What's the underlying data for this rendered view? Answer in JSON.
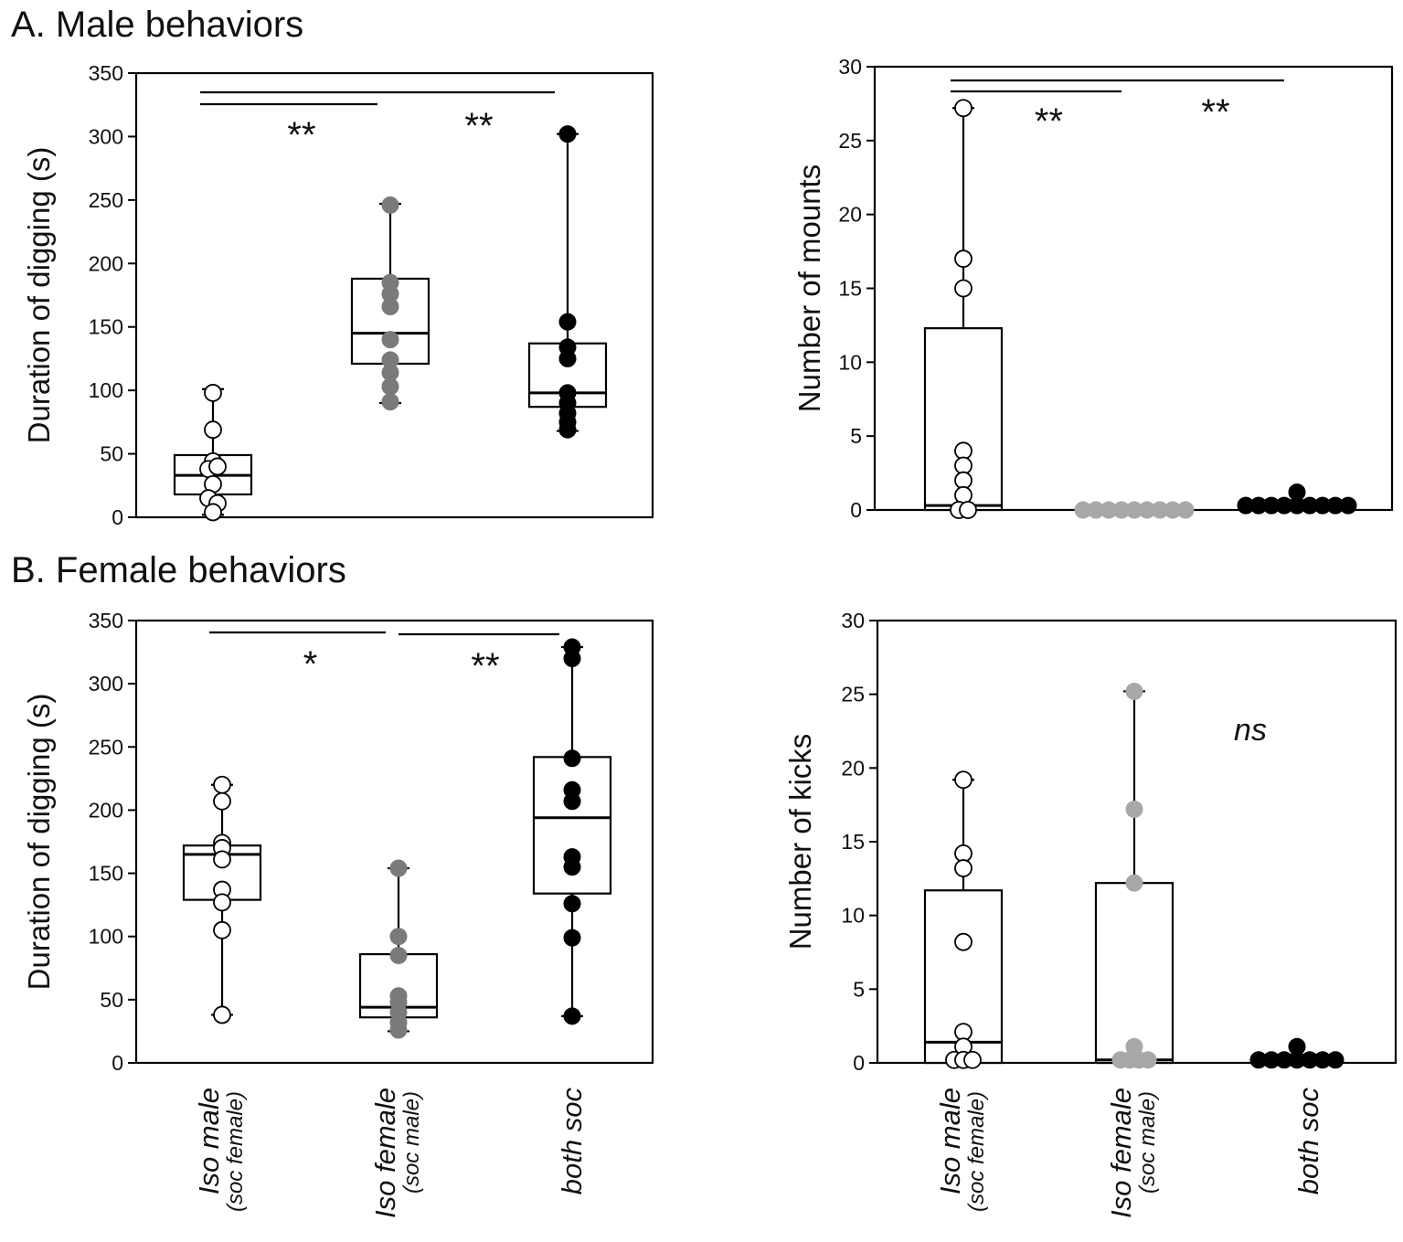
{
  "sections": {
    "a": "A. Male behaviors",
    "b": "B. Female behaviors"
  },
  "categories": [
    {
      "main": "Iso male",
      "sub": "(soc female)"
    },
    {
      "main": "Iso female",
      "sub": "(soc male)"
    },
    {
      "main": "both soc",
      "sub": ""
    }
  ],
  "colors": {
    "iso_male": "#ffffff",
    "iso_female": "#7a7a7a",
    "iso_female_light": "#a8a8a8",
    "both_soc": "#000000"
  },
  "chart_data": [
    {
      "id": "a-digging",
      "type": "box",
      "title": "",
      "xlabel": "",
      "ylabel": "Duration of digging (s)",
      "ylim": [
        0,
        350
      ],
      "yticks": [
        0,
        50,
        100,
        150,
        200,
        250,
        300,
        350
      ],
      "categories": [
        "Iso male (soc female)",
        "Iso female (soc male)",
        "both soc"
      ],
      "series": [
        {
          "name": "Iso male (soc female)",
          "color": "#ffffff",
          "box": {
            "q1": 18,
            "median": 33,
            "q3": 49,
            "whisker_low": 2,
            "whisker_high": 101
          },
          "points": [
            98,
            69,
            44,
            38,
            40,
            26,
            15,
            11,
            4
          ]
        },
        {
          "name": "Iso female (soc male)",
          "color": "#7a7a7a",
          "box": {
            "q1": 121,
            "median": 145,
            "q3": 188,
            "whisker_low": 90,
            "whisker_high": 247
          },
          "points": [
            246,
            185,
            176,
            166,
            140,
            124,
            114,
            103,
            91
          ]
        },
        {
          "name": "both soc",
          "color": "#000000",
          "box": {
            "q1": 87,
            "median": 98,
            "q3": 137,
            "whisker_low": 68,
            "whisker_high": 302
          },
          "points": [
            302,
            154,
            134,
            125,
            98,
            90,
            82,
            75,
            69
          ]
        }
      ],
      "significance": [
        {
          "from": 0,
          "to": 1,
          "label": "**"
        },
        {
          "from": 0,
          "to": 2,
          "label": "**"
        }
      ]
    },
    {
      "id": "a-mounts",
      "type": "box",
      "title": "",
      "xlabel": "",
      "ylabel": "Number of mounts",
      "ylim": [
        0,
        30
      ],
      "yticks": [
        0,
        5,
        10,
        15,
        20,
        25,
        30
      ],
      "categories": [
        "Iso male (soc female)",
        "Iso female (soc male)",
        "both soc"
      ],
      "series": [
        {
          "name": "Iso male (soc female)",
          "color": "#ffffff",
          "box": {
            "q1": 0,
            "median": 0.3,
            "q3": 12.3,
            "whisker_low": 0,
            "whisker_high": 27.2
          },
          "points": [
            27.2,
            17,
            15,
            4,
            3,
            2,
            1,
            0,
            0
          ]
        },
        {
          "name": "Iso female (soc male)",
          "color": "#a8a8a8",
          "box": null,
          "points": [
            0,
            0,
            0,
            0,
            0,
            0,
            0,
            0,
            0
          ]
        },
        {
          "name": "both soc",
          "color": "#000000",
          "box": null,
          "points": [
            1.2,
            0.3,
            0.3,
            0.3,
            0.3,
            0.3,
            0.3,
            0.3,
            0.3,
            0.3
          ]
        }
      ],
      "significance": [
        {
          "from": 0,
          "to": 1,
          "label": "**"
        },
        {
          "from": 0,
          "to": 2,
          "label": "**"
        }
      ]
    },
    {
      "id": "b-digging",
      "type": "box",
      "title": "",
      "xlabel": "",
      "ylabel": "Duration of digging (s)",
      "ylim": [
        0,
        350
      ],
      "yticks": [
        0,
        50,
        100,
        150,
        200,
        250,
        300,
        350
      ],
      "categories": [
        "Iso male (soc female)",
        "Iso female (soc male)",
        "both soc"
      ],
      "series": [
        {
          "name": "Iso male (soc female)",
          "color": "#ffffff",
          "box": {
            "q1": 129,
            "median": 165,
            "q3": 172,
            "whisker_low": 38,
            "whisker_high": 220
          },
          "points": [
            220,
            207,
            174,
            170,
            161,
            137,
            127,
            105,
            38
          ]
        },
        {
          "name": "Iso female (soc male)",
          "color": "#7a7a7a",
          "box": {
            "q1": 36,
            "median": 44,
            "q3": 86,
            "whisker_low": 25,
            "whisker_high": 154
          },
          "points": [
            154,
            100,
            85,
            53,
            48,
            40,
            32,
            26
          ]
        },
        {
          "name": "both soc",
          "color": "#000000",
          "box": {
            "q1": 134,
            "median": 194,
            "q3": 242,
            "whisker_low": 37,
            "whisker_high": 329
          },
          "points": [
            329,
            320,
            241,
            216,
            207,
            163,
            155,
            126,
            99,
            37
          ]
        }
      ],
      "significance": [
        {
          "from": 0,
          "to": 1,
          "label": "*"
        },
        {
          "from": 1,
          "to": 2,
          "label": "**"
        }
      ]
    },
    {
      "id": "b-kicks",
      "type": "box",
      "title": "",
      "xlabel": "",
      "ylabel": "Number of kicks",
      "ylim": [
        0,
        30
      ],
      "yticks": [
        0,
        5,
        10,
        15,
        20,
        25,
        30
      ],
      "categories": [
        "Iso male (soc female)",
        "Iso female (soc male)",
        "both soc"
      ],
      "series": [
        {
          "name": "Iso male (soc female)",
          "color": "#ffffff",
          "box": {
            "q1": 0,
            "median": 1.4,
            "q3": 11.7,
            "whisker_low": 0,
            "whisker_high": 19.2
          },
          "points": [
            19.2,
            14.2,
            13.2,
            8.2,
            2.1,
            1.1,
            0.2,
            0.2,
            0.2
          ]
        },
        {
          "name": "Iso female (soc male)",
          "color": "#a8a8a8",
          "box": {
            "q1": 0,
            "median": 0.2,
            "q3": 12.2,
            "whisker_low": 0,
            "whisker_high": 25.2
          },
          "points": [
            25.2,
            17.2,
            12.2,
            1.1,
            0.2,
            0.2,
            0.2,
            0.2
          ]
        },
        {
          "name": "both soc",
          "color": "#000000",
          "box": null,
          "points": [
            1.1,
            0.2,
            0.2,
            0.2,
            0.2,
            0.2,
            0.2,
            0.2
          ]
        }
      ],
      "annotation": "ns",
      "significance": []
    }
  ]
}
